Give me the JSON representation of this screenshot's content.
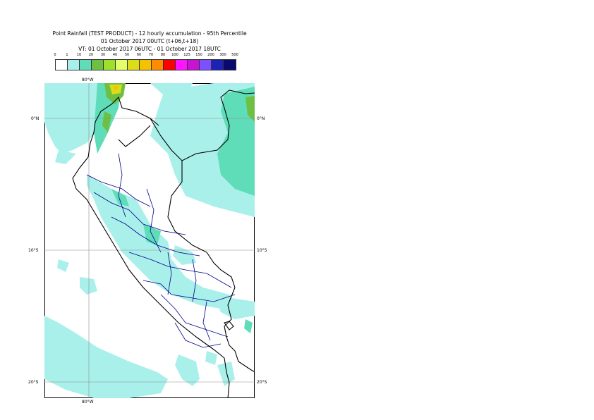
{
  "title": {
    "line1": "Point Rainfall (TEST PRODUCT) - 12 hourly accumulation - 95th Percentile",
    "line2": "01 October 2017 00UTC (t+06,t+18)",
    "line3": "VT: 01 October 2017 06UTC - 01 October 2017 18UTC"
  },
  "legend": {
    "thresholds": [
      "0",
      "1",
      "10",
      "20",
      "30",
      "40",
      "50",
      "60",
      "70",
      "80",
      "100",
      "125",
      "150",
      "200",
      "300",
      "500"
    ],
    "colors": [
      "#ffffff",
      "#a9f0ea",
      "#5fdcb8",
      "#6dc043",
      "#9ee12c",
      "#e3ff6a",
      "#dcdc18",
      "#f5c200",
      "#ff8c00",
      "#ff0000",
      "#ff14ff",
      "#c814d2",
      "#7d50ff",
      "#1e22b4",
      "#0a0a6e"
    ]
  },
  "map": {
    "lat_labels": {
      "north": "0°N",
      "mid": "10°S",
      "south": "20°S"
    },
    "lon_labels": {
      "top": "80°W",
      "bottom": "80°W"
    },
    "rain_colors": {
      "light": "#a9f0ea",
      "moderate": "#5fdcb8",
      "heavy": "#6dc043",
      "very_heavy": "#dcdc18",
      "extreme": "#f5c200"
    },
    "border_colors": {
      "country": "#000000",
      "region": "#00008c",
      "grid": "#8c8c8c"
    }
  }
}
